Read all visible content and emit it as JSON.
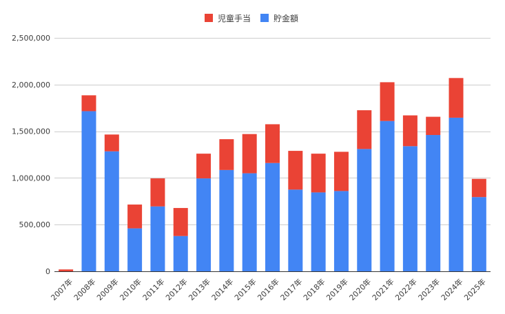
{
  "chart_data": {
    "type": "bar",
    "stacked": true,
    "title": "",
    "xlabel": "",
    "ylabel": "",
    "categories": [
      "2007年",
      "2008年",
      "2009年",
      "2010年",
      "2011年",
      "2012年",
      "2013年",
      "2014年",
      "2015年",
      "2016年",
      "2017年",
      "2018年",
      "2019年",
      "2020年",
      "2021年",
      "2022年",
      "2023年",
      "2024年",
      "2025年"
    ],
    "series": [
      {
        "name": "貯金額",
        "color": "#4285f4",
        "values": [
          0,
          1715000,
          1285000,
          460000,
          695000,
          378000,
          995000,
          1085000,
          1050000,
          1160000,
          875000,
          845000,
          860000,
          1310000,
          1610000,
          1340000,
          1460000,
          1645000,
          795000
        ]
      },
      {
        "name": "児童手当",
        "color": "#ea4335",
        "values": [
          20000,
          170000,
          180000,
          255000,
          300000,
          300000,
          265000,
          330000,
          420000,
          415000,
          415000,
          415000,
          420000,
          415000,
          415000,
          330000,
          195000,
          425000,
          195000
        ]
      }
    ],
    "ylim": [
      0,
      2500000
    ],
    "yticks": [
      0,
      500000,
      1000000,
      1500000,
      2000000,
      2500000
    ],
    "ytick_labels": [
      "0",
      "500,000",
      "1,000,000",
      "1,500,000",
      "2,000,000",
      "2,500,000"
    ],
    "legend": {
      "position": "top",
      "entries": [
        {
          "label": "児童手当",
          "color": "#ea4335"
        },
        {
          "label": "貯金額",
          "color": "#4285f4"
        }
      ]
    },
    "grid": true
  }
}
